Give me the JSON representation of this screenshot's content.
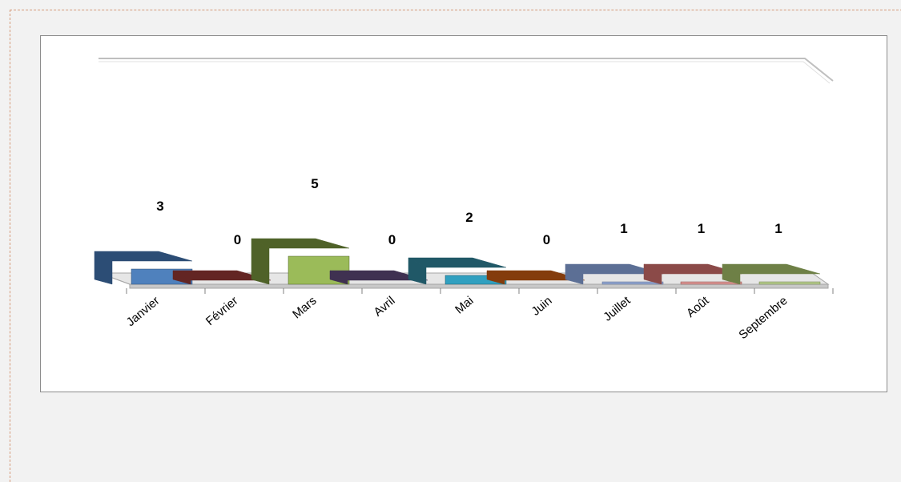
{
  "chart_data": {
    "type": "bar",
    "categories": [
      "Janvier",
      "Février",
      "Mars",
      "Avril",
      "Mai",
      "Juin",
      "Juillet",
      "Août",
      "Septembre"
    ],
    "values": [
      3,
      0,
      5,
      0,
      2,
      0,
      1,
      1,
      1
    ],
    "title": "",
    "xlabel": "",
    "ylabel": "",
    "grid": false,
    "legend": "none",
    "style": "3d-column",
    "colors": [
      "#4f81bd",
      "#953735",
      "#9bbb59",
      "#604a7b",
      "#31a0c0",
      "#c0662b",
      "#8ea2cc",
      "#d99694",
      "#b4c98c"
    ],
    "dark_colors": [
      "#2c4d75",
      "#632523",
      "#4f6228",
      "#3f3151",
      "#205867",
      "#843c0c",
      "#5c6f95",
      "#8b4a48",
      "#6e8046"
    ]
  }
}
